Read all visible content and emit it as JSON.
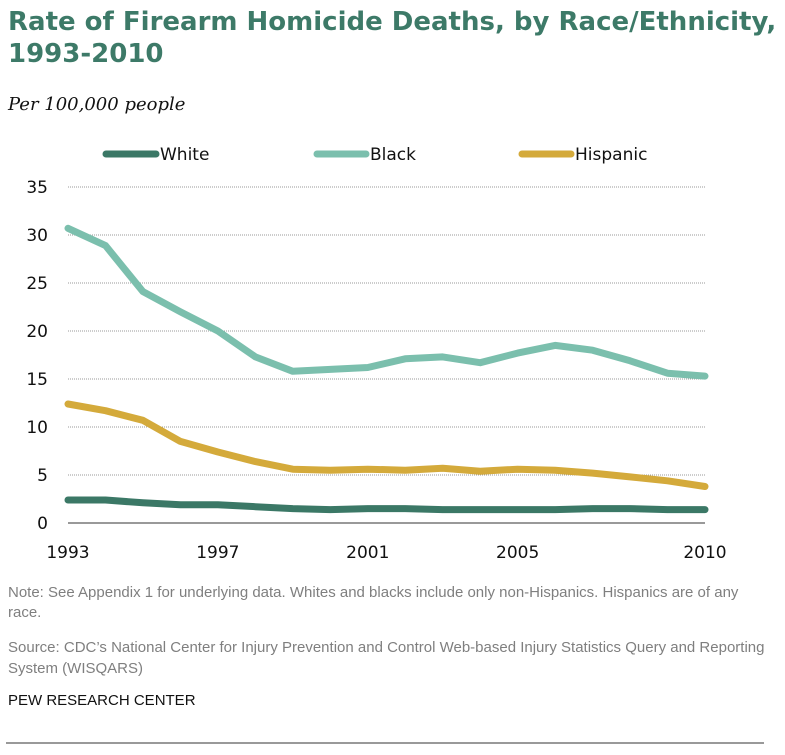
{
  "chart_data": {
    "type": "line",
    "title": "Rate of Firearm Homicide Deaths, by Race/Ethnicity, 1993-2010",
    "subtitle": "Per 100,000 people",
    "xlabel": "",
    "ylabel": "",
    "x": [
      1993,
      1994,
      1995,
      1996,
      1997,
      1998,
      1999,
      2000,
      2001,
      2002,
      2003,
      2004,
      2005,
      2006,
      2007,
      2008,
      2009,
      2010
    ],
    "xlim": [
      1993,
      2010
    ],
    "ylim": [
      0,
      35
    ],
    "x_ticks": [
      "1993",
      "1997",
      "2001",
      "2005",
      "2010"
    ],
    "x_tick_values": [
      1993,
      1997,
      2001,
      2005,
      2010
    ],
    "y_ticks": [
      "0",
      "5",
      "10",
      "15",
      "20",
      "25",
      "30",
      "35"
    ],
    "y_tick_values": [
      0,
      5,
      10,
      15,
      20,
      25,
      30,
      35
    ],
    "grid": true,
    "legend_position": "top",
    "series": [
      {
        "name": "White",
        "color": "#3b7866",
        "values": [
          2.4,
          2.4,
          2.1,
          1.9,
          1.9,
          1.7,
          1.5,
          1.4,
          1.5,
          1.5,
          1.4,
          1.4,
          1.4,
          1.4,
          1.5,
          1.5,
          1.4,
          1.4
        ]
      },
      {
        "name": "Black",
        "color": "#7bbfad",
        "values": [
          30.7,
          28.9,
          24.1,
          22.0,
          20.0,
          17.3,
          15.8,
          16.0,
          16.2,
          17.1,
          17.3,
          16.7,
          17.7,
          18.5,
          18.0,
          16.9,
          15.6,
          15.3
        ]
      },
      {
        "name": "Hispanic",
        "color": "#d4aa3b",
        "values": [
          12.4,
          11.7,
          10.7,
          8.5,
          7.4,
          6.4,
          5.6,
          5.5,
          5.6,
          5.5,
          5.7,
          5.4,
          5.6,
          5.5,
          5.2,
          4.8,
          4.4,
          3.8
        ]
      }
    ]
  },
  "footer": {
    "note": "Note:  See Appendix 1 for underlying data. Whites and blacks include only non-Hispanics. Hispanics are of any race.",
    "source": "Source: CDC’s National Center for Injury Prevention and Control Web-based Injury Statistics Query and Reporting System (WISQARS)",
    "brand": "PEW RESEARCH CENTER"
  }
}
